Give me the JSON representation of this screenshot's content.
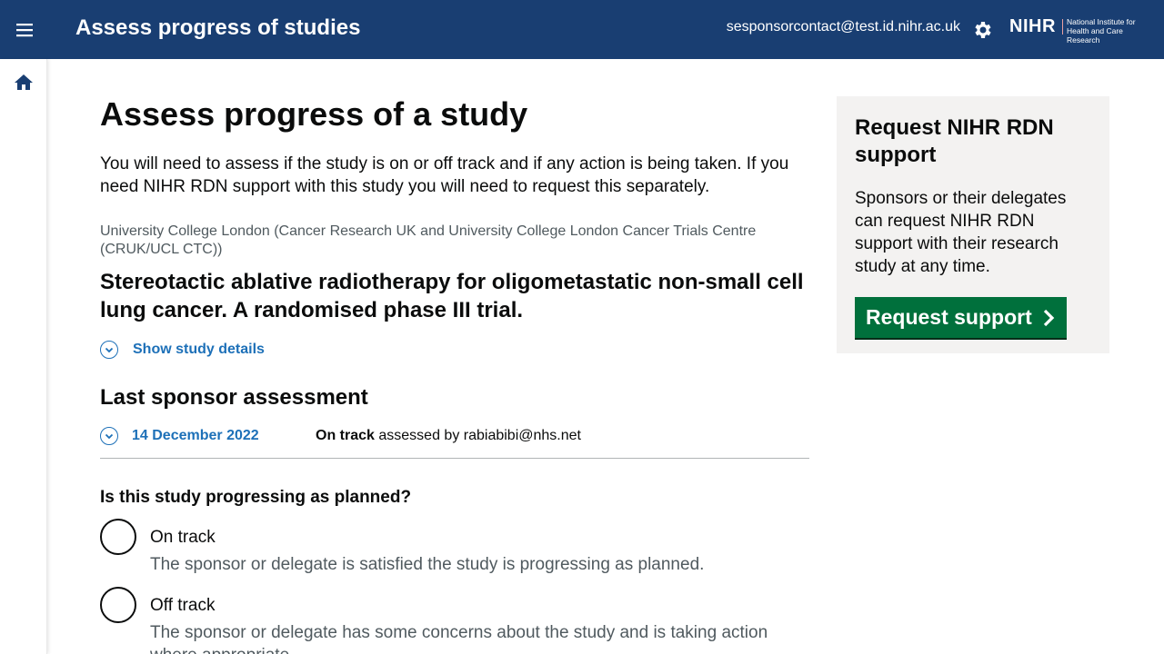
{
  "header": {
    "app_title": "Assess progress of studies",
    "user_email": "sesponsorcontact@test.id.nihr.ac.uk",
    "logo": {
      "main": "NIHR",
      "sub": "National Institute for Health and Care Research"
    },
    "colors": {
      "bar": "#193e72"
    }
  },
  "sidebar": {
    "items": [
      {
        "icon": "home-icon"
      }
    ]
  },
  "main": {
    "title": "Assess progress of a study",
    "intro": "You will need to assess if the study is on or off track and if any action is being taken. If you need NIHR RDN support with this study you will need to request this separately.",
    "organisation": "University College London (Cancer Research UK and University College London Cancer Trials Centre (CRUK/UCL CTC))",
    "study_title": "Stereotactic ablative radiotherapy for oligometastatic non-small cell lung cancer. A randomised phase III trial.",
    "show_details_label": "Show study details",
    "last_assessment": {
      "heading": "Last sponsor assessment",
      "date": "14 December 2022",
      "status": "On track",
      "assessed_by": "assessed by rabiabibi@nhs.net"
    },
    "question": {
      "label": "Is this study progressing as planned?",
      "options": [
        {
          "label": "On track",
          "hint": "The sponsor or delegate is satisfied the study is progressing as planned.",
          "selected": false
        },
        {
          "label": "Off track",
          "hint": "The sponsor or delegate has some concerns about the study and is taking action where appropriate.",
          "selected": false
        }
      ]
    }
  },
  "aside": {
    "title": "Request NIHR RDN support",
    "text": "Sponsors or their delegates can request NIHR RDN support with their research study at any time.",
    "button_label": "Request support",
    "colors": {
      "button": "#00703c",
      "panel": "#f3f2f1"
    }
  },
  "colors": {
    "link": "#1d70b8",
    "secondary_text": "#505a5f"
  }
}
